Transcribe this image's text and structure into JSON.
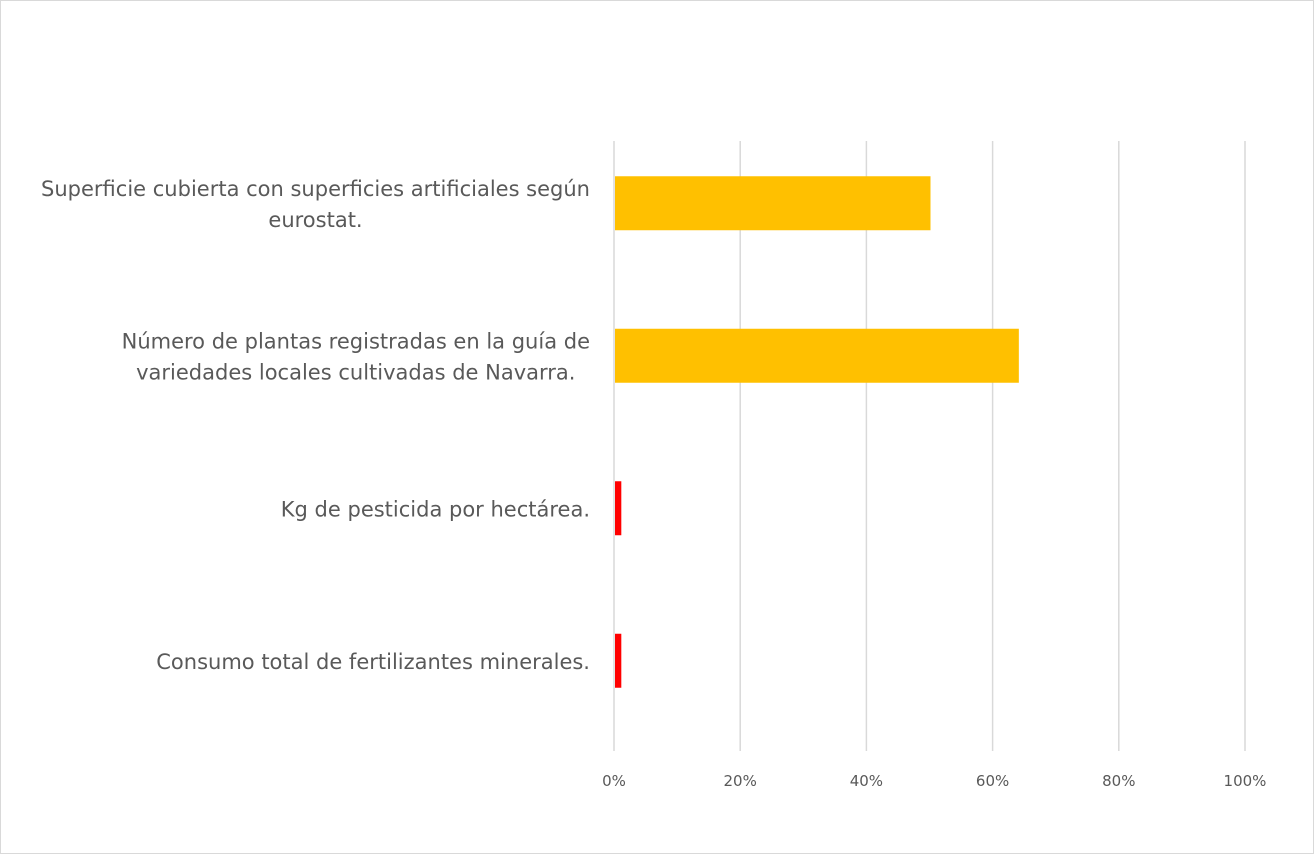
{
  "chart_data": {
    "type": "bar",
    "orientation": "horizontal",
    "title": "",
    "xlabel": "",
    "ylabel": "",
    "xlim": [
      0,
      1
    ],
    "x_ticks": [
      "0%",
      "20%",
      "40%",
      "60%",
      "80%",
      "100%"
    ],
    "grid": true,
    "legend": "none",
    "categories": [
      {
        "lines": [
          "Superficie cubierta con superficies artificiales según",
          "eurostat."
        ],
        "value": 0.5,
        "color": "#ffc000"
      },
      {
        "lines": [
          "Número de plantas registradas en la guía de",
          "variedades locales cultivadas de Navarra."
        ],
        "value": 0.64,
        "color": "#ffc000"
      },
      {
        "lines": [
          "Kg de pesticida por hectárea."
        ],
        "value": 0.01,
        "color": "#ff0000"
      },
      {
        "lines": [
          "Consumo total de fertilizantes minerales."
        ],
        "value": 0.01,
        "color": "#ff0000"
      }
    ]
  }
}
